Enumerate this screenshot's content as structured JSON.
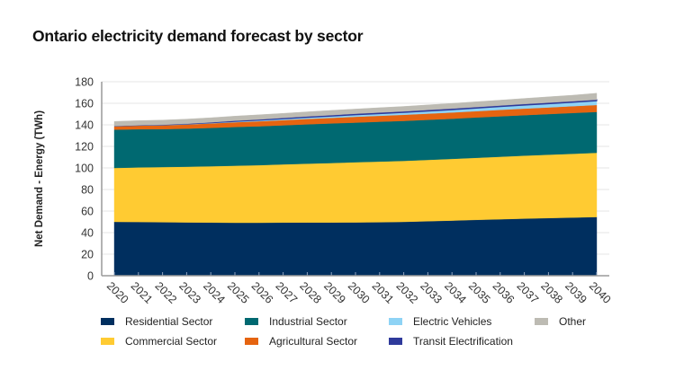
{
  "title": "Ontario electricity demand forecast by sector",
  "chart_data": {
    "type": "area",
    "stacked": true,
    "title": "Ontario electricity demand forecast by sector",
    "xlabel": "",
    "ylabel": "Net Demand - Energy (TWh)",
    "ylim": [
      0,
      180
    ],
    "yticks": [
      0,
      20,
      40,
      60,
      80,
      100,
      120,
      140,
      160,
      180
    ],
    "grid": true,
    "legend_position": "bottom",
    "categories": [
      "2020",
      "2021",
      "2022",
      "2023",
      "2024",
      "2025",
      "2026",
      "2027",
      "2028",
      "2029",
      "2030",
      "2031",
      "2032",
      "2033",
      "2034",
      "2035",
      "2036",
      "2037",
      "2038",
      "2039",
      "2040"
    ],
    "series": [
      {
        "name": "Residential Sector",
        "color": "#002f5f",
        "values": [
          50.0,
          49.9,
          49.7,
          49.5,
          49.3,
          49.2,
          49.2,
          49.3,
          49.4,
          49.4,
          49.5,
          49.7,
          50.0,
          50.6,
          51.2,
          51.8,
          52.4,
          53.0,
          53.5,
          54.0,
          54.5
        ]
      },
      {
        "name": "Commercial Sector",
        "color": "#ffcb32",
        "values": [
          50.0,
          50.6,
          51.1,
          51.7,
          52.3,
          52.9,
          53.4,
          54.0,
          54.6,
          55.2,
          55.8,
          56.2,
          56.6,
          56.9,
          57.2,
          57.6,
          58.0,
          58.4,
          58.8,
          59.2,
          59.6
        ]
      },
      {
        "name": "Industrial Sector",
        "color": "#006971",
        "values": [
          35.5,
          35.4,
          35.2,
          35.3,
          35.6,
          35.9,
          36.1,
          36.3,
          36.5,
          36.7,
          36.8,
          37.0,
          37.1,
          37.2,
          37.3,
          37.4,
          37.5,
          37.6,
          37.7,
          37.8,
          37.9
        ]
      },
      {
        "name": "Agricultural Sector",
        "color": "#e56410",
        "values": [
          3.2,
          3.4,
          3.6,
          3.8,
          4.1,
          4.4,
          4.6,
          4.8,
          5.0,
          5.2,
          5.4,
          5.5,
          5.6,
          5.7,
          5.8,
          5.9,
          6.0,
          6.1,
          6.2,
          6.3,
          6.4
        ]
      },
      {
        "name": "Electric Vehicles",
        "color": "#8ed3f5",
        "values": [
          0.2,
          0.3,
          0.4,
          0.5,
          0.6,
          0.8,
          1.0,
          1.2,
          1.4,
          1.6,
          1.8,
          2.0,
          2.2,
          2.4,
          2.6,
          2.8,
          3.0,
          3.2,
          3.4,
          3.6,
          3.9
        ]
      },
      {
        "name": "Transit Electrification",
        "color": "#2e3a9b",
        "values": [
          0.0,
          0.0,
          0.1,
          0.2,
          0.4,
          0.6,
          0.7,
          0.8,
          0.9,
          0.9,
          1.0,
          1.0,
          1.0,
          1.0,
          1.0,
          1.0,
          1.0,
          1.0,
          1.0,
          1.0,
          1.0
        ]
      },
      {
        "name": "Other",
        "color": "#bdbbb3",
        "values": [
          4.3,
          4.3,
          4.3,
          4.3,
          4.3,
          4.3,
          4.3,
          4.3,
          4.3,
          4.4,
          4.4,
          4.5,
          4.6,
          4.7,
          4.8,
          4.9,
          5.0,
          5.2,
          5.4,
          5.6,
          6.0
        ]
      }
    ]
  },
  "legend": {
    "items": [
      {
        "label": "Residential Sector",
        "color": "#002f5f"
      },
      {
        "label": "Industrial Sector",
        "color": "#006971"
      },
      {
        "label": "Electric Vehicles",
        "color": "#8ed3f5"
      },
      {
        "label": "Other",
        "color": "#bdbbb3"
      },
      {
        "label": "Commercial Sector",
        "color": "#ffcb32"
      },
      {
        "label": "Agricultural Sector",
        "color": "#e56410"
      },
      {
        "label": "Transit Electrification",
        "color": "#2e3a9b"
      }
    ]
  }
}
